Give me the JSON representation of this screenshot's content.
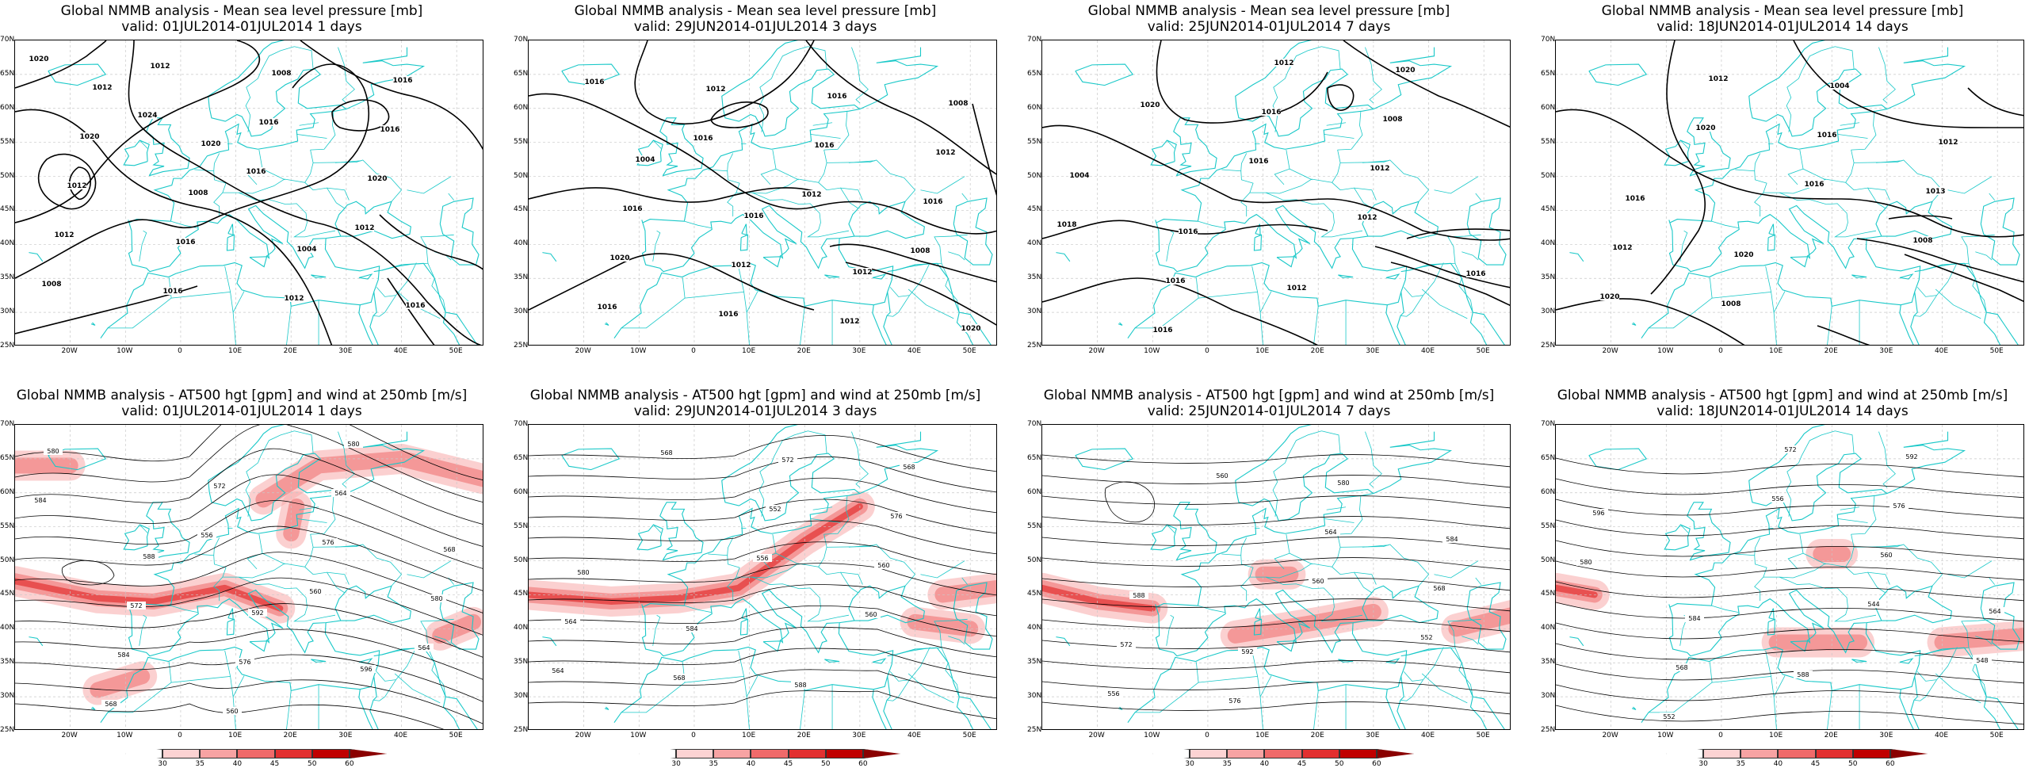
{
  "axes": {
    "y_labels": [
      "70N",
      "65N",
      "60N",
      "55N",
      "50N",
      "45N",
      "40N",
      "35N",
      "30N",
      "25N"
    ],
    "x_labels": [
      "20W",
      "10W",
      "0",
      "10E",
      "20E",
      "30E",
      "40E",
      "50E"
    ]
  },
  "colorbar": {
    "ticks": [
      "30",
      "35",
      "40",
      "45",
      "50",
      "60"
    ],
    "colors": [
      "#ffffff",
      "#fcd3d3",
      "#f7a3a3",
      "#f06a6a",
      "#e23030",
      "#c00000",
      "#8a0000"
    ]
  },
  "colors": {
    "coast": "#19c8c8",
    "contour": "#000000",
    "jet": "#e8262b"
  },
  "panels": [
    {
      "title": "Global NMMB analysis - Mean sea level pressure [mb]",
      "valid": "valid: 01JUL2014-01JUL2014   1 days",
      "labels": [
        "1020",
        "1024",
        "1016",
        "1012",
        "1008",
        "1012",
        "1016",
        "1020",
        "1012",
        "1016",
        "1008",
        "1016",
        "1012",
        "1016",
        "1012",
        "1016",
        "1020",
        "1008",
        "1004",
        "1016",
        "1012",
        "1020"
      ]
    },
    {
      "title": "Global NMMB analysis - Mean sea level pressure [mb]",
      "valid": "valid: 29JUN2014-01JUL2014   3 days",
      "labels": [
        "1016",
        "1016",
        "1012",
        "1008",
        "1016",
        "1012",
        "1016",
        "1016",
        "1020",
        "1016",
        "1016",
        "1012",
        "1016",
        "1012",
        "1012",
        "1008",
        "1004",
        "1016",
        "1012",
        "1020"
      ]
    },
    {
      "title": "Global NMMB analysis - Mean sea level pressure [mb]",
      "valid": "valid: 25JUN2014-01JUL2014   7 days",
      "labels": [
        "1020",
        "1016",
        "1012",
        "1016",
        "1016",
        "1016",
        "1012",
        "1018",
        "1016",
        "1012",
        "1008",
        "1004",
        "1016",
        "1012",
        "1020"
      ]
    },
    {
      "title": "Global NMMB analysis - Mean sea level pressure [mb]",
      "valid": "valid: 18JUN2014-01JUL2014  14 days",
      "labels": [
        "1020",
        "1016",
        "1008",
        "1020",
        "1012",
        "1016",
        "1013",
        "1012",
        "1008",
        "1004",
        "1012",
        "1016",
        "1020"
      ]
    },
    {
      "title": "Global NMMB analysis - AT500 hgt [gpm] and wind at 250mb [m/s]",
      "valid": "valid: 01JUL2014-01JUL2014   1 days",
      "labels": [
        "556",
        "560",
        "564",
        "568",
        "572",
        "576",
        "580",
        "584",
        "560",
        "564",
        "568",
        "572",
        "576",
        "580",
        "584",
        "588",
        "592",
        "596",
        "580"
      ]
    },
    {
      "title": "Global NMMB analysis - AT500 hgt [gpm] and wind at 250mb [m/s]",
      "valid": "valid: 29JUN2014-01JUL2014   3 days",
      "labels": [
        "556",
        "560",
        "564",
        "568",
        "552",
        "560",
        "564",
        "568",
        "572",
        "576",
        "580",
        "584",
        "588",
        "568"
      ]
    },
    {
      "title": "Global NMMB analysis - AT500 hgt [gpm] and wind at 250mb [m/s]",
      "valid": "valid: 25JUN2014-01JUL2014   7 days",
      "labels": [
        "560",
        "552",
        "556",
        "560",
        "564",
        "568",
        "572",
        "576",
        "580",
        "584",
        "588",
        "592"
      ]
    },
    {
      "title": "Global NMMB analysis - AT500 hgt [gpm] and wind at 250mb [m/s]",
      "valid": "valid: 18JUN2014-01JUL2014  14 days",
      "labels": [
        "544",
        "548",
        "552",
        "556",
        "560",
        "564",
        "568",
        "572",
        "576",
        "580",
        "584",
        "588",
        "592",
        "596"
      ]
    }
  ]
}
